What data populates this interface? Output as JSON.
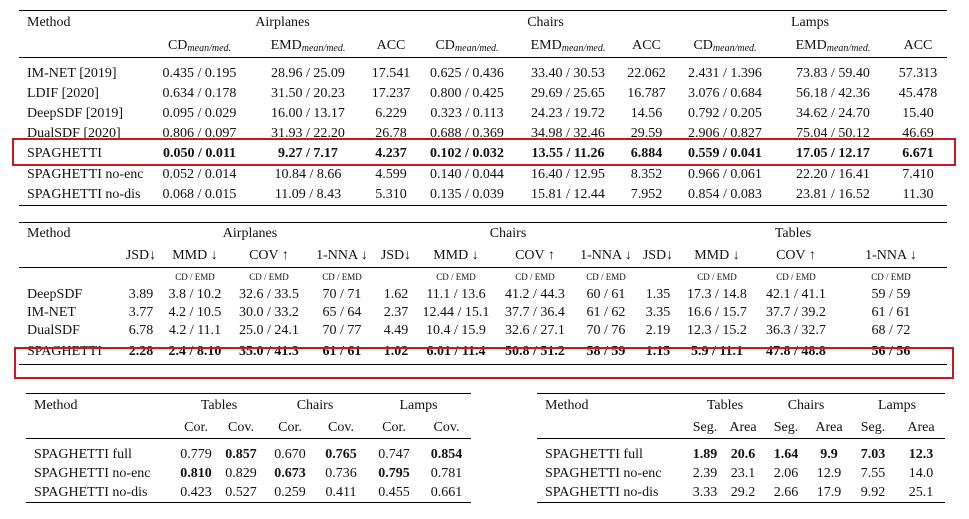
{
  "t1": {
    "method_label": "Method",
    "groups": [
      "Airplanes",
      "Chairs",
      "Lamps"
    ],
    "cd": "CD",
    "emd": "EMD",
    "sub": "mean/med.",
    "acc": "ACC",
    "rows": [
      {
        "name": "IM-NET [2019]",
        "v": [
          "0.435 / 0.195",
          "28.96 / 25.09",
          "17.541",
          "0.625 / 0.436",
          "33.40 / 30.53",
          "22.062",
          "2.431 / 1.396",
          "73.83 / 59.40",
          "57.313"
        ]
      },
      {
        "name": "LDIF [2020]",
        "v": [
          "0.634 / 0.178",
          "31.50 / 20.23",
          "17.237",
          "0.800 / 0.425",
          "29.69 / 25.65",
          "16.787",
          "3.076 / 0.684",
          "56.18 / 42.36",
          "45.478"
        ]
      },
      {
        "name": "DeepSDF [2019]",
        "v": [
          "0.095 / 0.029",
          "16.00 / 13.17",
          "6.229",
          "0.323 / 0.113",
          "24.23 / 19.72",
          "14.56",
          "0.792 / 0.205",
          "34.62 / 24.70",
          "15.40"
        ]
      },
      {
        "name": "DualSDF [2020]",
        "v": [
          "0.806 / 0.097",
          "31.93 / 22.20",
          "26.78",
          "0.688 / 0.369",
          "34.98 / 32.46",
          "29.59",
          "2.906 / 0.827",
          "75.04 / 50.12",
          "46.69"
        ]
      },
      {
        "name": "SPAGHETTI",
        "v": [
          "0.050 / 0.011",
          "9.27 / 7.17",
          "4.237",
          "0.102 / 0.032",
          "13.55 / 11.26",
          "6.884",
          "0.559 / 0.041",
          "17.05 / 12.17",
          "6.671"
        ]
      },
      {
        "name": "SPAGHETTI no-enc",
        "v": [
          "0.052 / 0.014",
          "10.84 / 8.66",
          "4.599",
          "0.140 / 0.044",
          "16.40 / 12.95",
          "8.352",
          "0.966 / 0.061",
          "22.20 / 16.41",
          "7.410"
        ]
      },
      {
        "name": "SPAGHETTI no-dis",
        "v": [
          "0.068 / 0.015",
          "11.09 / 8.43",
          "5.310",
          "0.135 / 0.039",
          "15.81 / 12.44",
          "7.952",
          "0.854 / 0.083",
          "23.81 / 16.52",
          "11.30"
        ]
      }
    ]
  },
  "t2": {
    "method_label": "Method",
    "groups": [
      "Airplanes",
      "Chairs",
      "Tables"
    ],
    "cols": [
      "JSD↓",
      "MMD ↓",
      "COV ↑",
      "1-NNA ↓"
    ],
    "cd_emd": "CD / EMD",
    "rows": [
      {
        "name": "DeepSDF",
        "v": [
          "3.89",
          "3.8 / 10.2",
          "32.6 / 33.5",
          "70 / 71",
          "1.62",
          "11.1 / 13.6",
          "41.2 / 44.3",
          "60 / 61",
          "1.35",
          "17.3 / 14.8",
          "42.1 / 41.1",
          "59 / 59"
        ]
      },
      {
        "name": "IM-NET",
        "v": [
          "3.77",
          "4.2 / 10.5",
          "30.0 / 33.2",
          "65 / 64",
          "2.37",
          "12.44 / 15.1",
          "37.7 / 36.4",
          "61 / 62",
          "3.35",
          "16.6 / 15.7",
          "37.7 / 39.2",
          "61 / 61"
        ]
      },
      {
        "name": "DualSDF",
        "v": [
          "6.78",
          "4.2 / 11.1",
          "25.0 / 24.1",
          "70 / 77",
          "4.49",
          "10.4 / 15.9",
          "32.6 / 27.1",
          "70 / 76",
          "2.19",
          "12.3 / 15.2",
          "36.3 / 32.7",
          "68 / 72"
        ]
      },
      {
        "name": "SPAGHETTI",
        "v": [
          "2.28",
          "2.4 / 8.10",
          "35.0 / 41.3",
          "61 / 61",
          "1.02",
          "6.01 / 11.4",
          "50.8 / 51.2",
          "58 / 59",
          "1.15",
          "5.9 / 11.1",
          "47.8 / 48.8",
          "56 / 56"
        ]
      }
    ]
  },
  "t3": {
    "method_label": "Method",
    "groups": [
      "Tables",
      "Chairs",
      "Lamps"
    ],
    "cols": [
      "Cor.",
      "Cov."
    ],
    "rows": [
      {
        "name": "SPAGHETTI full",
        "v": [
          "0.779",
          "0.857",
          "0.670",
          "0.765",
          "0.747",
          "0.854"
        ]
      },
      {
        "name": "SPAGHETTI no-enc",
        "v": [
          "0.810",
          "0.829",
          "0.673",
          "0.736",
          "0.795",
          "0.781"
        ]
      },
      {
        "name": "SPAGHETTI no-dis",
        "v": [
          "0.423",
          "0.527",
          "0.259",
          "0.411",
          "0.455",
          "0.661"
        ]
      }
    ]
  },
  "t4": {
    "method_label": "Method",
    "groups": [
      "Tables",
      "Chairs",
      "Lamps"
    ],
    "cols": [
      "Seg.",
      "Area"
    ],
    "rows": [
      {
        "name": "SPAGHETTI full",
        "v": [
          "1.89",
          "20.6",
          "1.64",
          "9.9",
          "7.03",
          "12.3"
        ]
      },
      {
        "name": "SPAGHETTI no-enc",
        "v": [
          "2.39",
          "23.1",
          "2.06",
          "12.9",
          "7.55",
          "14.0"
        ]
      },
      {
        "name": "SPAGHETTI no-dis",
        "v": [
          "3.33",
          "29.2",
          "2.66",
          "17.9",
          "9.92",
          "25.1"
        ]
      }
    ]
  },
  "highlight_color": "#d0161c"
}
